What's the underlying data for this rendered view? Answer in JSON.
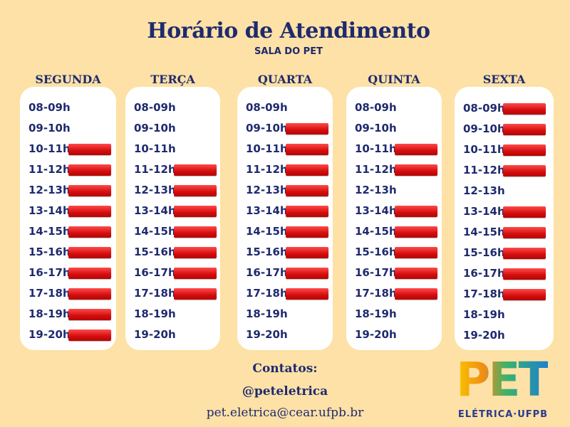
{
  "header": {
    "title": "Horário de Atendimento",
    "subtitle": "SALA DO PET"
  },
  "days": [
    {
      "name": "SEGUNDA",
      "slots": [
        {
          "time": "08-09h",
          "busy": false
        },
        {
          "time": "09-10h",
          "busy": false
        },
        {
          "time": "10-11h",
          "busy": true
        },
        {
          "time": "11-12h",
          "busy": true
        },
        {
          "time": "12-13h",
          "busy": true
        },
        {
          "time": "13-14h",
          "busy": true
        },
        {
          "time": "14-15h",
          "busy": true
        },
        {
          "time": "15-16h",
          "busy": true
        },
        {
          "time": "16-17h",
          "busy": true
        },
        {
          "time": "17-18h",
          "busy": true
        },
        {
          "time": "18-19h",
          "busy": true
        },
        {
          "time": "19-20h",
          "busy": true
        }
      ]
    },
    {
      "name": "TERÇA",
      "slots": [
        {
          "time": "08-09h",
          "busy": false
        },
        {
          "time": "09-10h",
          "busy": false
        },
        {
          "time": "10-11h",
          "busy": false
        },
        {
          "time": "11-12h",
          "busy": true
        },
        {
          "time": "12-13h",
          "busy": true
        },
        {
          "time": "13-14h",
          "busy": true
        },
        {
          "time": "14-15h",
          "busy": true
        },
        {
          "time": "15-16h",
          "busy": true
        },
        {
          "time": "16-17h",
          "busy": true
        },
        {
          "time": "17-18h",
          "busy": true
        },
        {
          "time": "18-19h",
          "busy": false
        },
        {
          "time": "19-20h",
          "busy": false
        }
      ]
    },
    {
      "name": "QUARTA",
      "slots": [
        {
          "time": "08-09h",
          "busy": false
        },
        {
          "time": "09-10h",
          "busy": true
        },
        {
          "time": "10-11h",
          "busy": true
        },
        {
          "time": "11-12h",
          "busy": true
        },
        {
          "time": "12-13h",
          "busy": true
        },
        {
          "time": "13-14h",
          "busy": true
        },
        {
          "time": "14-15h",
          "busy": true
        },
        {
          "time": "15-16h",
          "busy": true
        },
        {
          "time": "16-17h",
          "busy": true
        },
        {
          "time": "17-18h",
          "busy": true
        },
        {
          "time": "18-19h",
          "busy": false
        },
        {
          "time": "19-20h",
          "busy": false
        }
      ]
    },
    {
      "name": "QUINTA",
      "slots": [
        {
          "time": "08-09h",
          "busy": false
        },
        {
          "time": "09-10h",
          "busy": false
        },
        {
          "time": "10-11h",
          "busy": true
        },
        {
          "time": "11-12h",
          "busy": true
        },
        {
          "time": "12-13h",
          "busy": false
        },
        {
          "time": "13-14h",
          "busy": true
        },
        {
          "time": "14-15h",
          "busy": true
        },
        {
          "time": "15-16h",
          "busy": true
        },
        {
          "time": "16-17h",
          "busy": true
        },
        {
          "time": "17-18h",
          "busy": true
        },
        {
          "time": "18-19h",
          "busy": false
        },
        {
          "time": "19-20h",
          "busy": false
        }
      ]
    },
    {
      "name": "SEXTA",
      "slots": [
        {
          "time": "08-09h",
          "busy": true
        },
        {
          "time": "09-10h",
          "busy": true
        },
        {
          "time": "10-11h",
          "busy": true
        },
        {
          "time": "11-12h",
          "busy": true
        },
        {
          "time": "12-13h",
          "busy": false
        },
        {
          "time": "13-14h",
          "busy": true
        },
        {
          "time": "14-15h",
          "busy": true
        },
        {
          "time": "15-16h",
          "busy": true
        },
        {
          "time": "16-17h",
          "busy": true
        },
        {
          "time": "17-18h",
          "busy": true
        },
        {
          "time": "18-19h",
          "busy": false
        },
        {
          "time": "19-20h",
          "busy": false
        }
      ]
    }
  ],
  "contacts": {
    "title": "Contatos:",
    "handle": "@peteletrica",
    "email": "pet.eletrica@cear.ufpb.br"
  },
  "logo": {
    "word": "PET",
    "sub": "ELÉTRICA·UFPB"
  },
  "colors": {
    "background": "#fde1a6",
    "text": "#1f2a6e",
    "busy": "#d40d0d"
  }
}
